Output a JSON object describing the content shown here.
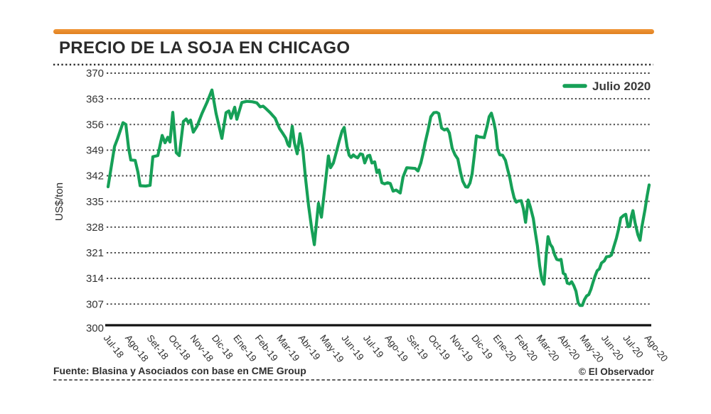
{
  "header": {
    "title": "PRECIO DE LA SOJA EN CHICAGO"
  },
  "legend": {
    "label": "Julio 2020"
  },
  "footer": {
    "source": "Fuente: Blasina y Asociados con base en CME Group",
    "credit": "© El Observador"
  },
  "colors": {
    "line_green": "#16a057",
    "accent_orange": "#e8872e",
    "text_dark": "#2b2b2b",
    "grid_gray": "#424242"
  },
  "chart_data": {
    "type": "line",
    "title": "PRECIO DE LA SOJA EN CHICAGO",
    "xlabel": "",
    "ylabel": "US$/ton",
    "ylim": [
      300,
      370
    ],
    "yticks": [
      370,
      363,
      356,
      349,
      342,
      335,
      328,
      321,
      314,
      307,
      300
    ],
    "grid": "dotted-horizontal",
    "legend_position": "top-right",
    "x_categories": [
      "Jul-18",
      "Ago-18",
      "Set-18",
      "Oct-18",
      "Nov-18",
      "Dic-18",
      "Ene-19",
      "Feb-19",
      "Mar-19",
      "Abr-19",
      "May-19",
      "Jun-19",
      "Jul-19",
      "Ago-19",
      "Set-19",
      "Oct-19",
      "Nov-19",
      "Dic-19",
      "Ene-20",
      "Feb-20",
      "Mar-20",
      "Abr-20",
      "May-20",
      "Jun-20",
      "Jul-20",
      "Ago-20"
    ],
    "series": [
      {
        "name": "Julio 2020",
        "color": "#16a057",
        "x_unit": "months-from-Jul-18",
        "points": [
          [
            0,
            339
          ],
          [
            0.3,
            350
          ],
          [
            0.43,
            352
          ],
          [
            0.69,
            356.5
          ],
          [
            0.82,
            356
          ],
          [
            0.95,
            349.5
          ],
          [
            1.05,
            346.3
          ],
          [
            1.25,
            346.2
          ],
          [
            1.38,
            343
          ],
          [
            1.48,
            339.3
          ],
          [
            1.74,
            339.2
          ],
          [
            1.94,
            339.4
          ],
          [
            2.07,
            347.2
          ],
          [
            2.3,
            347.5
          ],
          [
            2.5,
            353
          ],
          [
            2.63,
            351
          ],
          [
            2.76,
            352.5
          ],
          [
            2.86,
            351.2
          ],
          [
            2.99,
            359.3
          ],
          [
            3.15,
            348.3
          ],
          [
            3.29,
            347.5
          ],
          [
            3.48,
            356.8
          ],
          [
            3.61,
            357.5
          ],
          [
            3.71,
            356.5
          ],
          [
            3.81,
            357.2
          ],
          [
            3.94,
            353.9
          ],
          [
            4.11,
            355.5
          ],
          [
            4.34,
            359
          ],
          [
            4.57,
            362
          ],
          [
            4.8,
            365.4
          ],
          [
            4.99,
            359
          ],
          [
            5.26,
            352.2
          ],
          [
            5.45,
            359.2
          ],
          [
            5.58,
            359.7
          ],
          [
            5.68,
            357.7
          ],
          [
            5.85,
            360.7
          ],
          [
            5.95,
            357.4
          ],
          [
            6.18,
            362
          ],
          [
            6.41,
            362.3
          ],
          [
            6.67,
            362.2
          ],
          [
            6.87,
            361.9
          ],
          [
            7.03,
            360.8
          ],
          [
            7.16,
            361
          ],
          [
            7.26,
            360.5
          ],
          [
            7.49,
            359.2
          ],
          [
            7.72,
            357.7
          ],
          [
            7.92,
            354.9
          ],
          [
            8.08,
            353.5
          ],
          [
            8.21,
            352.3
          ],
          [
            8.31,
            350.5
          ],
          [
            8.38,
            350
          ],
          [
            8.51,
            355.5
          ],
          [
            8.61,
            351
          ],
          [
            8.74,
            348
          ],
          [
            8.87,
            353.5
          ],
          [
            9,
            349
          ],
          [
            9.13,
            341
          ],
          [
            9.26,
            334
          ],
          [
            9.4,
            328
          ],
          [
            9.53,
            323.2
          ],
          [
            9.66,
            331
          ],
          [
            9.72,
            334.5
          ],
          [
            9.86,
            330.7
          ],
          [
            10.02,
            339
          ],
          [
            10.18,
            347.4
          ],
          [
            10.28,
            344.2
          ],
          [
            10.41,
            345.5
          ],
          [
            10.55,
            348.5
          ],
          [
            10.68,
            351.5
          ],
          [
            10.81,
            354.2
          ],
          [
            10.91,
            355.2
          ],
          [
            11.04,
            350
          ],
          [
            11.14,
            347.6
          ],
          [
            11.23,
            347
          ],
          [
            11.33,
            347.7
          ],
          [
            11.43,
            347.2
          ],
          [
            11.53,
            346.9
          ],
          [
            11.66,
            348
          ],
          [
            11.76,
            347.8
          ],
          [
            11.86,
            345.5
          ],
          [
            11.99,
            347.4
          ],
          [
            12.09,
            347.6
          ],
          [
            12.19,
            345.5
          ],
          [
            12.32,
            345.8
          ],
          [
            12.42,
            342.9
          ],
          [
            12.52,
            343.6
          ],
          [
            12.65,
            340.1
          ],
          [
            12.78,
            339.8
          ],
          [
            12.91,
            340.1
          ],
          [
            13.04,
            339.9
          ],
          [
            13.17,
            337.8
          ],
          [
            13.31,
            338.1
          ],
          [
            13.4,
            337.7
          ],
          [
            13.5,
            337.3
          ],
          [
            13.63,
            341.7
          ],
          [
            13.8,
            344.2
          ],
          [
            14,
            344.1
          ],
          [
            14.19,
            344
          ],
          [
            14.32,
            343.3
          ],
          [
            14.45,
            345.5
          ],
          [
            14.55,
            348
          ],
          [
            14.65,
            351
          ],
          [
            14.78,
            354.3
          ],
          [
            14.91,
            358.1
          ],
          [
            15.05,
            359.2
          ],
          [
            15.18,
            359.3
          ],
          [
            15.28,
            359
          ],
          [
            15.41,
            355
          ],
          [
            15.54,
            354.5
          ],
          [
            15.67,
            354.8
          ],
          [
            15.77,
            353.7
          ],
          [
            15.9,
            349.5
          ],
          [
            16.03,
            347.7
          ],
          [
            16.16,
            346.6
          ],
          [
            16.29,
            342.8
          ],
          [
            16.39,
            340.5
          ],
          [
            16.52,
            339
          ],
          [
            16.62,
            338.9
          ],
          [
            16.72,
            340
          ],
          [
            16.82,
            342.5
          ],
          [
            16.92,
            347.4
          ],
          [
            17.02,
            352.9
          ],
          [
            17.15,
            352.6
          ],
          [
            17.28,
            352.5
          ],
          [
            17.38,
            352.4
          ],
          [
            17.51,
            355.4
          ],
          [
            17.61,
            358.1
          ],
          [
            17.71,
            359.1
          ],
          [
            17.81,
            357
          ],
          [
            17.9,
            354.4
          ],
          [
            18,
            349.2
          ],
          [
            18.1,
            347.7
          ],
          [
            18.23,
            347.6
          ],
          [
            18.36,
            346.2
          ],
          [
            18.46,
            343.8
          ],
          [
            18.56,
            341.5
          ],
          [
            18.66,
            338.5
          ],
          [
            18.76,
            336
          ],
          [
            18.86,
            334.8
          ],
          [
            18.96,
            335.1
          ],
          [
            19.09,
            335.2
          ],
          [
            19.19,
            333
          ],
          [
            19.29,
            329.3
          ],
          [
            19.41,
            335.4
          ],
          [
            19.51,
            333.5
          ],
          [
            19.65,
            330.3
          ],
          [
            19.74,
            326.5
          ],
          [
            19.84,
            322.8
          ],
          [
            19.94,
            317.5
          ],
          [
            20.04,
            313.8
          ],
          [
            20.14,
            312.4
          ],
          [
            20.24,
            320.2
          ],
          [
            20.33,
            325.4
          ],
          [
            20.43,
            323.3
          ],
          [
            20.53,
            322.5
          ],
          [
            20.63,
            320.5
          ],
          [
            20.73,
            319.2
          ],
          [
            20.83,
            319
          ],
          [
            20.93,
            319.2
          ],
          [
            21.03,
            315.4
          ],
          [
            21.12,
            315.1
          ],
          [
            21.22,
            312.7
          ],
          [
            21.32,
            312.5
          ],
          [
            21.42,
            313.1
          ],
          [
            21.52,
            312
          ],
          [
            21.62,
            310.5
          ],
          [
            21.72,
            307.3
          ],
          [
            21.81,
            306.6
          ],
          [
            21.91,
            306.6
          ],
          [
            22.01,
            308.2
          ],
          [
            22.11,
            309.2
          ],
          [
            22.21,
            309.6
          ],
          [
            22.31,
            311
          ],
          [
            22.4,
            312.8
          ],
          [
            22.5,
            314.6
          ],
          [
            22.6,
            316.1
          ],
          [
            22.7,
            316.6
          ],
          [
            22.8,
            318.2
          ],
          [
            22.93,
            318.8
          ],
          [
            23.03,
            319.9
          ],
          [
            23.16,
            320
          ],
          [
            23.26,
            320.4
          ],
          [
            23.36,
            322.5
          ],
          [
            23.49,
            325
          ],
          [
            23.59,
            327.5
          ],
          [
            23.69,
            330.5
          ],
          [
            23.82,
            331.2
          ],
          [
            23.92,
            331.5
          ],
          [
            24.02,
            328.1
          ],
          [
            24.11,
            328.2
          ],
          [
            24.18,
            330.9
          ],
          [
            24.25,
            332.5
          ],
          [
            24.35,
            329.2
          ],
          [
            24.48,
            325.9
          ],
          [
            24.58,
            324.4
          ],
          [
            24.67,
            328.3
          ],
          [
            24.81,
            332.8
          ],
          [
            24.9,
            336.3
          ],
          [
            25,
            339.5
          ]
        ]
      }
    ]
  }
}
